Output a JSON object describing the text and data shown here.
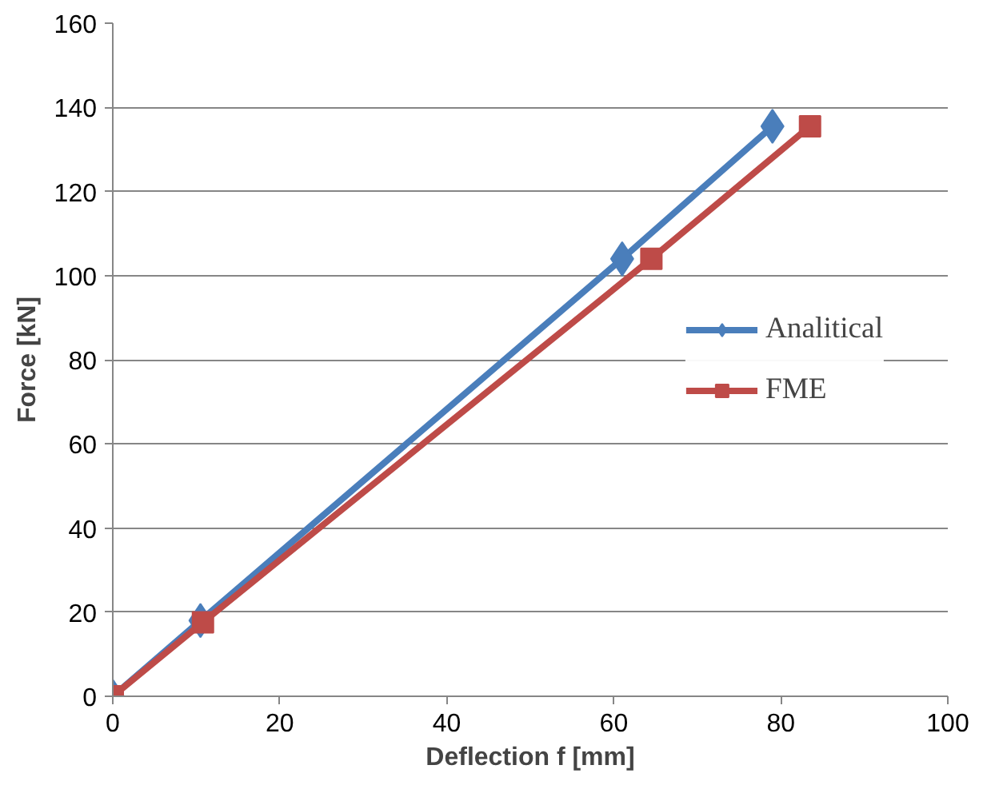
{
  "chart_data": {
    "type": "line",
    "xlabel": "Deflection f [mm]",
    "ylabel": "Force [kN]",
    "xlim": [
      0,
      100
    ],
    "xticks": [
      0,
      20,
      40,
      60,
      80,
      100
    ],
    "ylim": [
      0,
      160
    ],
    "yticks": [
      0,
      20,
      40,
      60,
      80,
      100,
      120,
      140,
      160
    ],
    "grid": "y",
    "legend": "right",
    "line_style": "solid",
    "series": [
      {
        "name": "Analitical",
        "color": "#4a7ebb",
        "marker": "diamond",
        "x": [
          0,
          10.5,
          61,
          79
        ],
        "values": [
          0,
          18,
          104,
          135.5
        ]
      },
      {
        "name": "FME",
        "color": "#be4b48",
        "marker": "square",
        "x": [
          0,
          10.8,
          64.5,
          83.5
        ],
        "values": [
          0,
          17.6,
          104,
          135.5
        ]
      }
    ]
  }
}
